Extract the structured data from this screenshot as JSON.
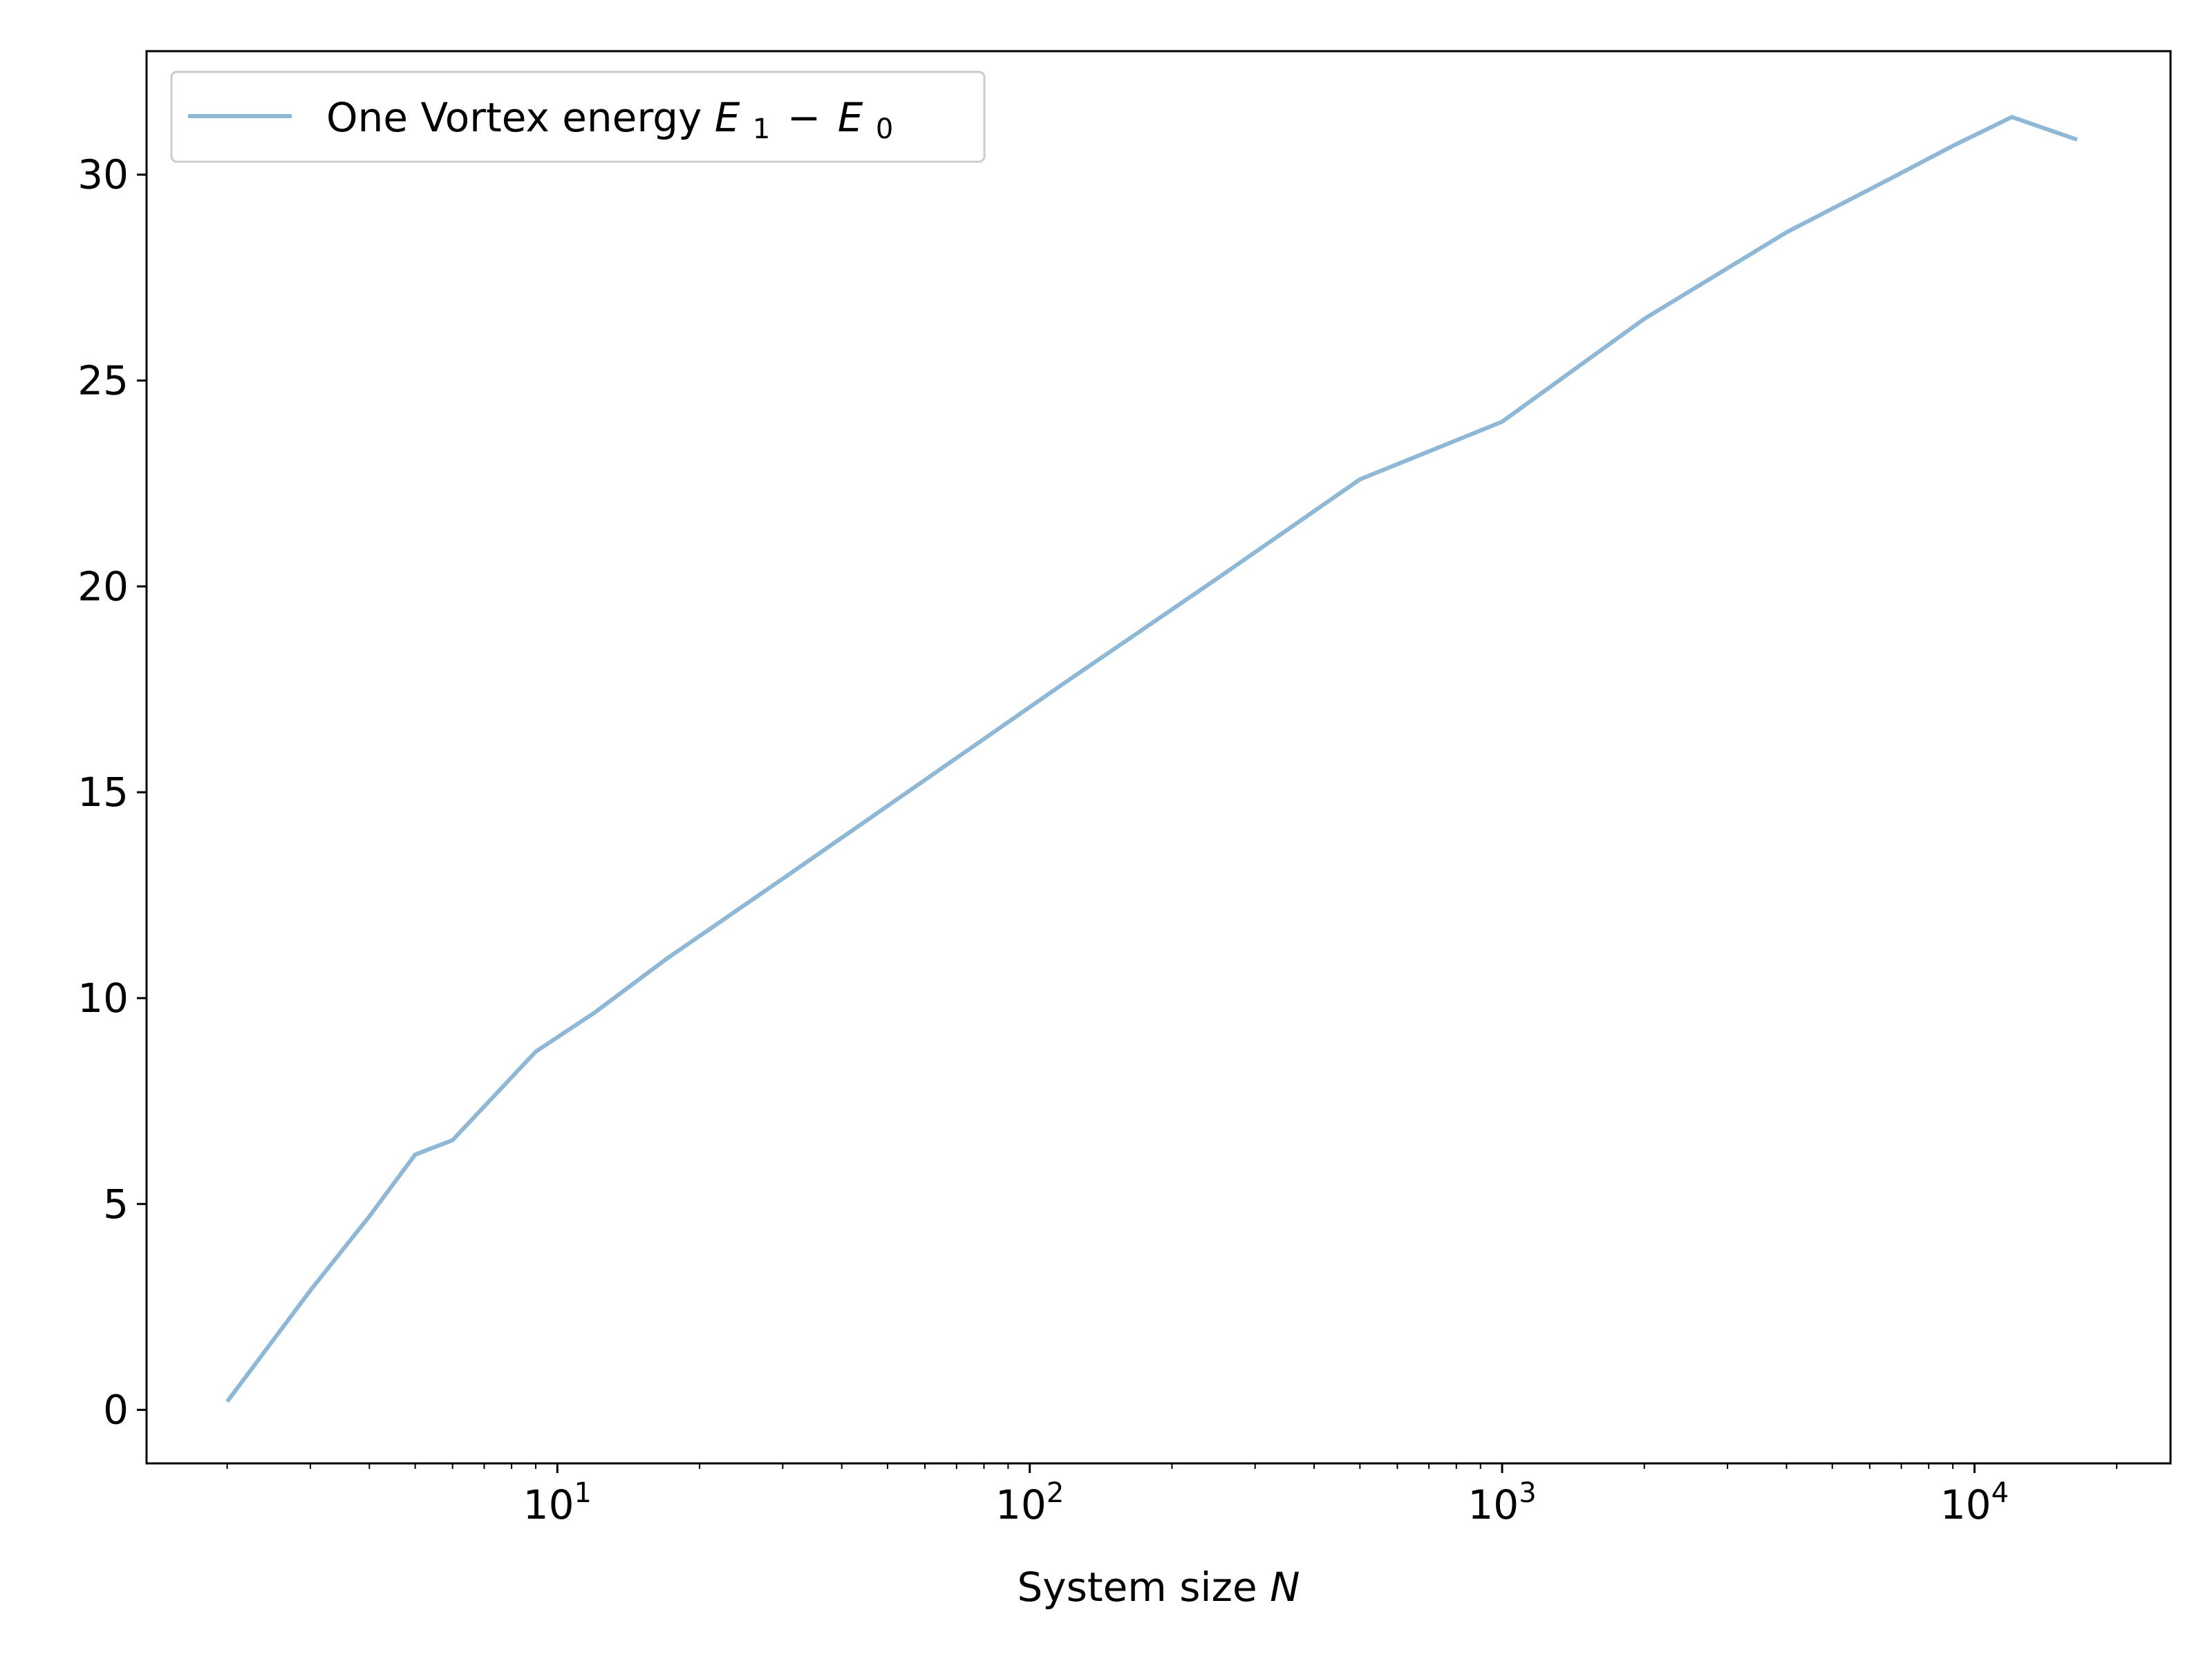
{
  "chart_data": {
    "type": "line",
    "xlabel": "System size",
    "xlabel_var": "N",
    "x_scale": "log",
    "xlim": [
      1.35,
      26000
    ],
    "ylim": [
      -1.3,
      33
    ],
    "x_major_ticks": [
      {
        "value": 10,
        "base": "10",
        "exp": "1"
      },
      {
        "value": 100,
        "base": "10",
        "exp": "2"
      },
      {
        "value": 1000,
        "base": "10",
        "exp": "3"
      },
      {
        "value": 10000,
        "base": "10",
        "exp": "4"
      }
    ],
    "y_ticks": [
      {
        "value": 0,
        "label": "0"
      },
      {
        "value": 5,
        "label": "5"
      },
      {
        "value": 10,
        "label": "10"
      },
      {
        "value": 15,
        "label": "15"
      },
      {
        "value": 20,
        "label": "20"
      },
      {
        "value": 25,
        "label": "25"
      },
      {
        "value": 30,
        "label": "30"
      }
    ],
    "legend": {
      "position": "top-left",
      "prefix": "One Vortex energy ",
      "math": {
        "e1": "E",
        "s1": "1",
        "minus": "−",
        "e2": "E",
        "s2": "0"
      }
    },
    "grid": false,
    "series": [
      {
        "color": "#8fb7d6",
        "x": [
          2,
          3,
          4,
          5,
          6,
          9,
          12,
          17,
          30,
          60,
          120,
          250,
          500,
          1000,
          2000,
          4000,
          6500,
          9000,
          12000,
          16500
        ],
        "y": [
          0.2,
          2.9,
          4.7,
          6.2,
          6.55,
          8.7,
          9.65,
          10.95,
          12.9,
          15.3,
          17.7,
          20.2,
          22.6,
          24.0,
          26.5,
          28.6,
          29.85,
          30.7,
          31.4,
          30.85
        ]
      }
    ]
  }
}
